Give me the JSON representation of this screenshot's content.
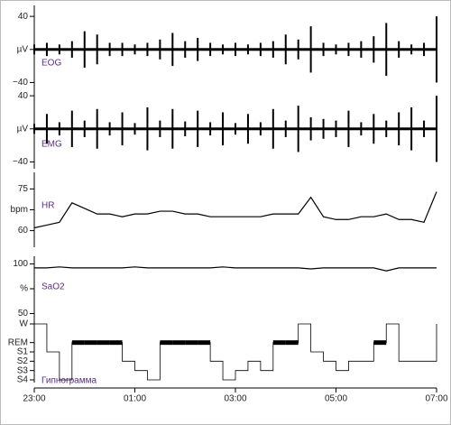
{
  "chart_data": [
    {
      "type": "envelope",
      "title": "EOG",
      "color": "#000000",
      "x": [
        23,
        23.25,
        23.5,
        23.75,
        24,
        24.25,
        24.5,
        24.75,
        25,
        25.25,
        25.5,
        25.75,
        26,
        26.25,
        26.5,
        26.75,
        27,
        27.25,
        27.5,
        27.75,
        28,
        28.25,
        28.5,
        28.75,
        29,
        29.25,
        29.5,
        29.75,
        30,
        30.25,
        30.5,
        30.75,
        31
      ],
      "values": [
        6,
        8,
        6,
        10,
        22,
        18,
        8,
        8,
        6,
        8,
        12,
        20,
        10,
        14,
        8,
        6,
        8,
        6,
        8,
        10,
        18,
        12,
        28,
        8,
        6,
        8,
        10,
        16,
        32,
        10,
        6,
        8,
        40
      ],
      "xlim": [
        23,
        31
      ],
      "ylim": [
        -45,
        50
      ],
      "yticks": [
        40,
        {
          "value": 0,
          "label": "µV"
        },
        {
          "value": -40,
          "label": "−40"
        }
      ]
    },
    {
      "type": "envelope",
      "title": "EMG",
      "color": "#000000",
      "x": [
        23,
        23.25,
        23.5,
        23.75,
        24,
        24.25,
        24.5,
        24.75,
        25,
        25.25,
        25.5,
        25.75,
        26,
        26.25,
        26.5,
        26.75,
        27,
        27.25,
        27.5,
        27.75,
        28,
        28.25,
        28.5,
        28.75,
        29,
        29.25,
        29.5,
        29.75,
        30,
        30.25,
        30.5,
        30.75,
        31
      ],
      "values": [
        6,
        18,
        8,
        22,
        10,
        24,
        8,
        20,
        7,
        26,
        10,
        24,
        9,
        22,
        8,
        20,
        7,
        18,
        8,
        24,
        10,
        28,
        14,
        12,
        10,
        22,
        8,
        18,
        10,
        20,
        26,
        10,
        40
      ],
      "xlim": [
        23,
        31
      ],
      "ylim": [
        -45,
        50
      ],
      "yticks": [
        40,
        {
          "value": 0,
          "label": "µV"
        },
        {
          "value": -40,
          "label": "−40"
        }
      ]
    },
    {
      "type": "line",
      "title": "HR",
      "color": "#000000",
      "x": [
        23,
        23.25,
        23.5,
        23.75,
        24,
        24.25,
        24.5,
        24.75,
        25,
        25.25,
        25.5,
        25.75,
        26,
        26.25,
        26.5,
        26.75,
        27,
        27.25,
        27.5,
        27.75,
        28,
        28.25,
        28.5,
        28.75,
        29,
        29.25,
        29.5,
        29.75,
        30,
        30.25,
        30.5,
        30.75,
        31
      ],
      "values": [
        61,
        62,
        63,
        70,
        68,
        66,
        66,
        65,
        66,
        66,
        67,
        67,
        66,
        66,
        65,
        65,
        65,
        65,
        65,
        66,
        66,
        66,
        72,
        65,
        64,
        64,
        65,
        65,
        66,
        64,
        64,
        63,
        74
      ],
      "xlim": [
        23,
        31
      ],
      "ylim": [
        55,
        80
      ],
      "yticks": [
        75,
        {
          "value": 67.5,
          "label": "bpm"
        },
        60
      ]
    },
    {
      "type": "line",
      "title": "SaO2",
      "color": "#000000",
      "x": [
        23,
        23.25,
        23.5,
        23.75,
        24,
        24.25,
        24.5,
        24.75,
        25,
        25.25,
        25.5,
        25.75,
        26,
        26.25,
        26.5,
        26.75,
        27,
        27.25,
        27.5,
        27.75,
        28,
        28.25,
        28.5,
        28.75,
        29,
        29.25,
        29.5,
        29.75,
        30,
        30.25,
        30.5,
        30.75,
        31
      ],
      "values": [
        96,
        96,
        97,
        96,
        96,
        96,
        96,
        96,
        97,
        96,
        96,
        96,
        96,
        96,
        96,
        97,
        96,
        96,
        96,
        96,
        96,
        96,
        95,
        96,
        96,
        96,
        96,
        96,
        93,
        96,
        96,
        96,
        96
      ],
      "xlim": [
        23,
        31
      ],
      "ylim": [
        45,
        105
      ],
      "yticks": [
        100,
        {
          "value": 75,
          "label": "%"
        },
        50
      ]
    },
    {
      "type": "step",
      "title": "Гипнограмма",
      "color": "#000000",
      "x": [
        23,
        23.25,
        23.5,
        23.75,
        24,
        24.25,
        24.5,
        24.75,
        25,
        25.25,
        25.5,
        25.75,
        26,
        26.25,
        26.5,
        26.75,
        27,
        27.25,
        27.5,
        27.75,
        28,
        28.25,
        28.5,
        28.75,
        29,
        29.25,
        29.5,
        29.75,
        30,
        30.25,
        30.5,
        30.75,
        31
      ],
      "values": [
        6,
        3,
        0,
        4,
        4,
        4,
        4,
        2,
        1,
        0,
        4,
        4,
        4,
        4,
        2,
        0,
        1,
        2,
        1,
        4,
        4,
        6,
        3,
        2,
        1,
        2,
        2,
        4,
        6,
        2,
        2,
        2,
        6
      ],
      "xlim": [
        23,
        31
      ],
      "ylim": [
        0,
        6
      ],
      "yticks": [
        {
          "value": 6,
          "label": "W"
        },
        {
          "value": 4,
          "label": "REM"
        },
        {
          "value": 3,
          "label": "S1"
        },
        {
          "value": 2,
          "label": "S2"
        },
        {
          "value": 1,
          "label": "S3"
        },
        {
          "value": 0,
          "label": "S4"
        }
      ],
      "xticks": [
        {
          "value": 23,
          "label": "23:00"
        },
        {
          "value": 25,
          "label": "01:00"
        },
        {
          "value": 27,
          "label": "03:00"
        },
        {
          "value": 29,
          "label": "05:00"
        },
        {
          "value": 31,
          "label": "07:00"
        }
      ]
    }
  ]
}
